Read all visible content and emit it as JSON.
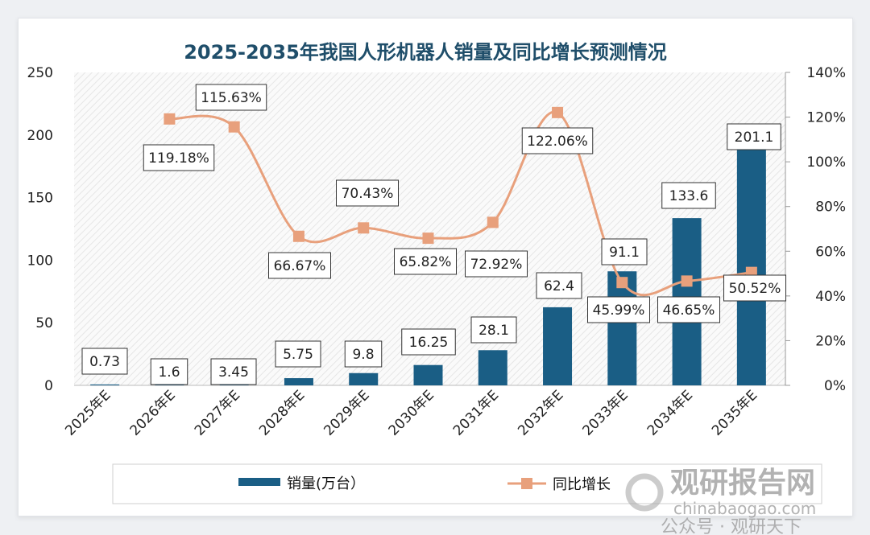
{
  "chart_data": {
    "type": "bar+line",
    "title": "2025-2035年我国人形机器人销量及同比增长预测情况",
    "categories": [
      "2025年E",
      "2026年E",
      "2027年E",
      "2028年E",
      "2029年E",
      "2030年E",
      "2031年E",
      "2032年E",
      "2033年E",
      "2034年E",
      "2035年E"
    ],
    "series": [
      {
        "name": "销量(万台）",
        "type": "bar",
        "axis": "left",
        "color": "#1a5e85",
        "values": [
          0.73,
          1.6,
          3.45,
          5.75,
          9.8,
          16.25,
          28.1,
          62.4,
          91.1,
          133.6,
          201.1
        ],
        "labels": [
          "0.73",
          "1.6",
          "3.45",
          "5.75",
          "9.8",
          "16.25",
          "28.1",
          "62.4",
          "91.1",
          "133.6",
          "201.1"
        ]
      },
      {
        "name": "同比增长",
        "type": "line",
        "axis": "right",
        "color": "#e8a07c",
        "values": [
          null,
          119.18,
          115.63,
          66.67,
          70.43,
          65.82,
          72.92,
          122.06,
          45.99,
          46.65,
          50.52
        ],
        "labels": [
          "",
          "119.18%",
          "115.63%",
          "66.67%",
          "70.43%",
          "65.82%",
          "72.92%",
          "122.06%",
          "45.99%",
          "46.65%",
          "50.52%"
        ]
      }
    ],
    "y_left": {
      "range": [
        0,
        250
      ],
      "ticks": [
        "0",
        "50",
        "100",
        "150",
        "200",
        "250"
      ]
    },
    "y_right": {
      "range": [
        0,
        140
      ],
      "ticks": [
        "0%",
        "20%",
        "40%",
        "60%",
        "80%",
        "100%",
        "120%",
        "140%"
      ]
    },
    "legend_placement": "bottom",
    "grid": false
  },
  "watermark": {
    "brand": "观研报告网",
    "url": "chinabaogao.com",
    "account": "公众号 · 观研天下"
  }
}
